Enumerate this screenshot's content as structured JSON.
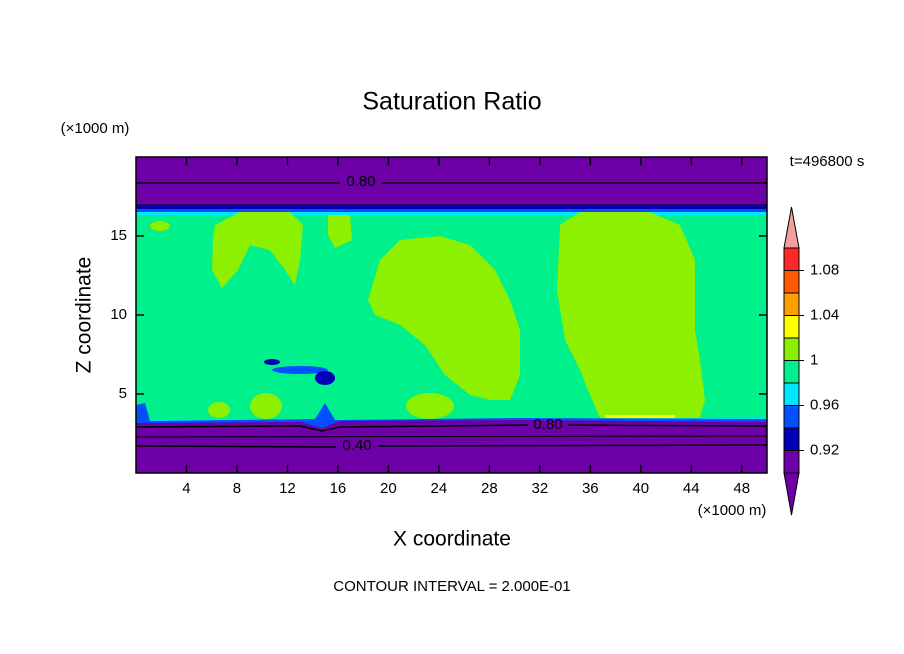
{
  "chart_data": {
    "type": "contour",
    "title": "Saturation Ratio",
    "x_label": "X coordinate",
    "y_label": "Z coordinate",
    "x_unit": "(×1000 m)",
    "y_unit": "(×1000 m)",
    "time_label": "t=496800 s",
    "footer": "CONTOUR INTERVAL = 2.000E-01",
    "xlim": [
      0,
      50
    ],
    "ylim": [
      0,
      20
    ],
    "xticks": [
      4,
      8,
      12,
      16,
      20,
      24,
      28,
      32,
      36,
      40,
      44,
      48
    ],
    "yticks": [
      5,
      10,
      15
    ],
    "colorbar": {
      "levels": [
        0.9,
        0.92,
        0.94,
        0.96,
        0.98,
        1,
        1.02,
        1.04,
        1.06,
        1.08,
        1.1
      ],
      "ticks": [
        0.92,
        0.96,
        1,
        1.04,
        1.08
      ],
      "colors": [
        "#6e00a8",
        "#6e00a8",
        "#0000b4",
        "#0050ff",
        "#00e6ff",
        "#00f08c",
        "#8cf000",
        "#ffff00",
        "#ffa000",
        "#ff5a00",
        "#ff2828",
        "#f0a0a0"
      ]
    },
    "contour_labels": [
      {
        "value": 0.8,
        "label": "0.80"
      },
      {
        "value": 0.8,
        "label": "0.80"
      },
      {
        "value": 0.4,
        "label": "0.40"
      }
    ]
  }
}
